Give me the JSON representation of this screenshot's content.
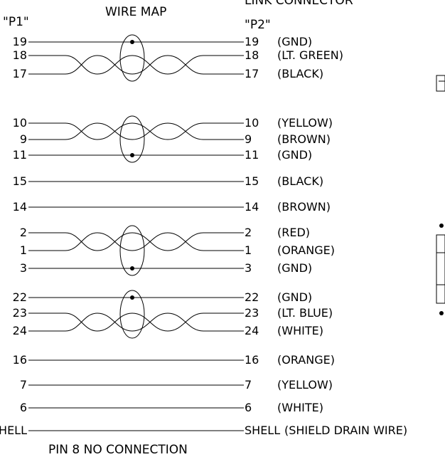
{
  "headers": {
    "p1": "\"P1\"",
    "wire_map": "WIRE MAP",
    "link_connector": "LINK CONNECTOR",
    "p2": "\"P2\""
  },
  "footer": "PIN 8 NO CONNECTION",
  "groups": [
    {
      "type": "twisted",
      "rows": [
        {
          "p1": "19",
          "p2": "19",
          "label": "(GND)",
          "shape": "straight",
          "dot": true
        },
        {
          "p1": "18",
          "p2": "18",
          "label": "(LT. GREEN)",
          "shape": "twist"
        },
        {
          "p1": "17",
          "p2": "17",
          "label": "(BLACK)",
          "shape": "twist"
        }
      ]
    },
    {
      "type": "twisted",
      "rows": [
        {
          "p1": "10",
          "p2": "10",
          "label": "(YELLOW)",
          "shape": "twist"
        },
        {
          "p1": "9",
          "p2": "9",
          "label": "(BROWN)",
          "shape": "twist"
        },
        {
          "p1": "11",
          "p2": "11",
          "label": "(GND)",
          "shape": "straight",
          "dot": true
        }
      ]
    },
    {
      "type": "single",
      "rows": [
        {
          "p1": "15",
          "p2": "15",
          "label": "(BLACK)",
          "shape": "straight"
        }
      ]
    },
    {
      "type": "single",
      "rows": [
        {
          "p1": "14",
          "p2": "14",
          "label": "(BROWN)",
          "shape": "straight"
        }
      ]
    },
    {
      "type": "twisted",
      "rows": [
        {
          "p1": "2",
          "p2": "2",
          "label": "(RED)",
          "shape": "twist"
        },
        {
          "p1": "1",
          "p2": "1",
          "label": "(ORANGE)",
          "shape": "twist"
        },
        {
          "p1": "3",
          "p2": "3",
          "label": "(GND)",
          "shape": "straight",
          "dot": true
        }
      ]
    },
    {
      "type": "twisted",
      "rows": [
        {
          "p1": "22",
          "p2": "22",
          "label": "(GND)",
          "shape": "straight",
          "dot": true
        },
        {
          "p1": "23",
          "p2": "23",
          "label": "(LT. BLUE)",
          "shape": "twist"
        },
        {
          "p1": "24",
          "p2": "24",
          "label": "(WHITE)",
          "shape": "twist"
        }
      ]
    },
    {
      "type": "single",
      "rows": [
        {
          "p1": "16",
          "p2": "16",
          "label": "(ORANGE)",
          "shape": "straight"
        }
      ]
    },
    {
      "type": "single",
      "rows": [
        {
          "p1": "7",
          "p2": "7",
          "label": "(YELLOW)",
          "shape": "straight"
        }
      ]
    },
    {
      "type": "single",
      "rows": [
        {
          "p1": "6",
          "p2": "6",
          "label": "(WHITE)",
          "shape": "straight"
        }
      ]
    },
    {
      "type": "single",
      "rows": [
        {
          "p1": "SHELL",
          "p2": "SHELL",
          "label": "(SHIELD DRAIN WIRE)",
          "shape": "straight"
        }
      ]
    }
  ]
}
